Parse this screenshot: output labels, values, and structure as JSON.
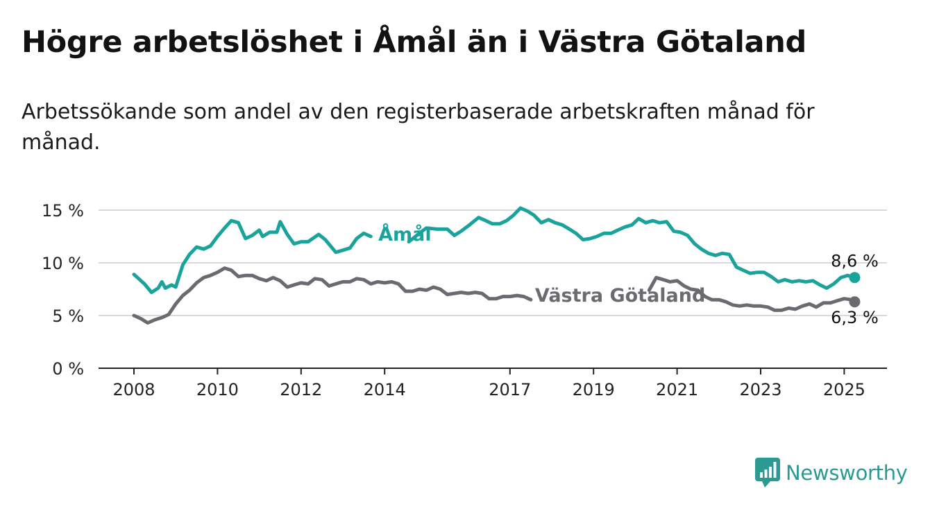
{
  "title": "Högre arbetslöshet i Åmål än i Västra Götaland",
  "subtitle": "Arbetssökande som andel av den registerbaserade arbetskraften månad för månad.",
  "brand": "Newsworthy",
  "colors": {
    "amal": "#1aa39a",
    "vg": "#6b6a70",
    "grid": "#d9d9d9",
    "axis": "#222222",
    "brand": "#2a9a93"
  },
  "chart_data": {
    "type": "line",
    "title": "Högre arbetslöshet i Åmål än i Västra Götaland",
    "ylim": [
      0,
      15
    ],
    "y_ticks": [
      0,
      5,
      10,
      15
    ],
    "y_tick_labels": [
      "0 %",
      "5 %",
      "10 %",
      "15 %"
    ],
    "x_ticks": [
      2008,
      2010,
      2012,
      2014,
      2017,
      2019,
      2021,
      2023,
      2025
    ],
    "x_tick_labels": [
      "2008",
      "2010",
      "2012",
      "2014",
      "2017",
      "2019",
      "2021",
      "2023",
      "2025"
    ],
    "grid": true,
    "series": [
      {
        "name": "Åmål",
        "color": "#1aa39a",
        "end_label": "8,6 %",
        "points": [
          [
            2008.0,
            8.9
          ],
          [
            2008.25,
            8.0
          ],
          [
            2008.42,
            7.2
          ],
          [
            2008.58,
            7.6
          ],
          [
            2008.67,
            8.2
          ],
          [
            2008.75,
            7.6
          ],
          [
            2008.9,
            7.9
          ],
          [
            2009.0,
            7.7
          ],
          [
            2009.17,
            9.8
          ],
          [
            2009.33,
            10.8
          ],
          [
            2009.5,
            11.5
          ],
          [
            2009.67,
            11.3
          ],
          [
            2009.83,
            11.6
          ],
          [
            2010.0,
            12.5
          ],
          [
            2010.17,
            13.3
          ],
          [
            2010.33,
            14.0
          ],
          [
            2010.5,
            13.8
          ],
          [
            2010.67,
            12.3
          ],
          [
            2010.83,
            12.6
          ],
          [
            2011.0,
            13.1
          ],
          [
            2011.08,
            12.5
          ],
          [
            2011.25,
            12.9
          ],
          [
            2011.42,
            12.9
          ],
          [
            2011.5,
            13.9
          ],
          [
            2011.67,
            12.7
          ],
          [
            2011.83,
            11.8
          ],
          [
            2012.0,
            12.0
          ],
          [
            2012.17,
            12.0
          ],
          [
            2012.42,
            12.7
          ],
          [
            2012.58,
            12.2
          ],
          [
            2012.83,
            11.0
          ],
          [
            2013.0,
            11.2
          ],
          [
            2013.17,
            11.4
          ],
          [
            2013.33,
            12.3
          ],
          [
            2013.5,
            12.8
          ],
          [
            2013.67,
            12.5
          ]
        ]
      },
      {
        "name": "Åmål",
        "color": "#1aa39a",
        "points": [
          [
            2014.58,
            12.0
          ],
          [
            2014.83,
            12.8
          ],
          [
            2015.0,
            13.3
          ],
          [
            2015.25,
            13.2
          ],
          [
            2015.5,
            13.2
          ],
          [
            2015.67,
            12.6
          ],
          [
            2015.83,
            13.0
          ],
          [
            2016.0,
            13.5
          ],
          [
            2016.25,
            14.3
          ],
          [
            2016.42,
            14.0
          ],
          [
            2016.58,
            13.7
          ],
          [
            2016.75,
            13.7
          ],
          [
            2016.92,
            14.0
          ],
          [
            2017.08,
            14.5
          ],
          [
            2017.25,
            15.2
          ],
          [
            2017.42,
            14.9
          ],
          [
            2017.58,
            14.5
          ],
          [
            2017.75,
            13.8
          ],
          [
            2017.92,
            14.1
          ],
          [
            2018.08,
            13.8
          ],
          [
            2018.25,
            13.6
          ],
          [
            2018.42,
            13.2
          ],
          [
            2018.58,
            12.8
          ],
          [
            2018.75,
            12.2
          ],
          [
            2018.92,
            12.3
          ],
          [
            2019.08,
            12.5
          ],
          [
            2019.25,
            12.8
          ],
          [
            2019.42,
            12.8
          ],
          [
            2019.58,
            13.1
          ],
          [
            2019.75,
            13.4
          ],
          [
            2019.92,
            13.6
          ],
          [
            2020.08,
            14.2
          ],
          [
            2020.25,
            13.8
          ],
          [
            2020.42,
            14.0
          ],
          [
            2020.58,
            13.8
          ],
          [
            2020.75,
            13.9
          ],
          [
            2020.92,
            13.0
          ],
          [
            2021.08,
            12.9
          ],
          [
            2021.25,
            12.6
          ],
          [
            2021.42,
            11.8
          ],
          [
            2021.58,
            11.3
          ],
          [
            2021.75,
            10.9
          ],
          [
            2021.92,
            10.7
          ],
          [
            2022.08,
            10.9
          ],
          [
            2022.25,
            10.8
          ],
          [
            2022.42,
            9.6
          ],
          [
            2022.58,
            9.3
          ],
          [
            2022.75,
            9.0
          ],
          [
            2022.92,
            9.1
          ],
          [
            2023.08,
            9.1
          ],
          [
            2023.25,
            8.7
          ],
          [
            2023.42,
            8.2
          ],
          [
            2023.58,
            8.4
          ],
          [
            2023.75,
            8.2
          ],
          [
            2023.92,
            8.3
          ],
          [
            2024.08,
            8.2
          ],
          [
            2024.25,
            8.3
          ],
          [
            2024.42,
            7.9
          ],
          [
            2024.58,
            7.6
          ],
          [
            2024.75,
            8.0
          ],
          [
            2024.92,
            8.6
          ],
          [
            2025.08,
            8.8
          ],
          [
            2025.25,
            8.6
          ]
        ]
      },
      {
        "name": "Västra Götaland",
        "color": "#6b6a70",
        "points": [
          [
            2008.0,
            5.0
          ],
          [
            2008.17,
            4.7
          ],
          [
            2008.33,
            4.3
          ],
          [
            2008.5,
            4.6
          ],
          [
            2008.67,
            4.8
          ],
          [
            2008.83,
            5.1
          ],
          [
            2009.0,
            6.1
          ],
          [
            2009.17,
            6.9
          ],
          [
            2009.33,
            7.4
          ],
          [
            2009.5,
            8.1
          ],
          [
            2009.67,
            8.6
          ],
          [
            2009.83,
            8.8
          ],
          [
            2010.0,
            9.1
          ],
          [
            2010.17,
            9.5
          ],
          [
            2010.33,
            9.3
          ],
          [
            2010.5,
            8.7
          ],
          [
            2010.67,
            8.8
          ],
          [
            2010.83,
            8.8
          ],
          [
            2011.0,
            8.5
          ],
          [
            2011.17,
            8.3
          ],
          [
            2011.33,
            8.6
          ],
          [
            2011.5,
            8.3
          ],
          [
            2011.67,
            7.7
          ],
          [
            2011.83,
            7.9
          ],
          [
            2012.0,
            8.1
          ],
          [
            2012.17,
            8.0
          ],
          [
            2012.33,
            8.5
          ],
          [
            2012.5,
            8.4
          ],
          [
            2012.67,
            7.8
          ],
          [
            2012.83,
            8.0
          ],
          [
            2013.0,
            8.2
          ],
          [
            2013.17,
            8.2
          ],
          [
            2013.33,
            8.5
          ],
          [
            2013.5,
            8.4
          ],
          [
            2013.67,
            8.0
          ],
          [
            2013.83,
            8.2
          ],
          [
            2014.0,
            8.1
          ],
          [
            2014.17,
            8.2
          ],
          [
            2014.33,
            8.0
          ],
          [
            2014.5,
            7.3
          ],
          [
            2014.67,
            7.3
          ],
          [
            2014.83,
            7.5
          ],
          [
            2015.0,
            7.4
          ],
          [
            2015.17,
            7.7
          ],
          [
            2015.33,
            7.5
          ],
          [
            2015.5,
            7.0
          ],
          [
            2015.67,
            7.1
          ],
          [
            2015.83,
            7.2
          ],
          [
            2016.0,
            7.1
          ],
          [
            2016.17,
            7.2
          ],
          [
            2016.33,
            7.1
          ],
          [
            2016.5,
            6.6
          ],
          [
            2016.67,
            6.6
          ],
          [
            2016.83,
            6.8
          ],
          [
            2017.0,
            6.8
          ],
          [
            2017.17,
            6.9
          ],
          [
            2017.33,
            6.8
          ],
          [
            2017.5,
            6.5
          ]
        ]
      },
      {
        "name": "Västra Götaland",
        "color": "#6b6a70",
        "points": [
          [
            2020.33,
            7.4
          ],
          [
            2020.5,
            8.6
          ],
          [
            2020.67,
            8.4
          ],
          [
            2020.83,
            8.2
          ],
          [
            2021.0,
            8.3
          ],
          [
            2021.17,
            7.8
          ],
          [
            2021.33,
            7.5
          ],
          [
            2021.5,
            7.4
          ],
          [
            2021.67,
            6.8
          ],
          [
            2021.83,
            6.5
          ],
          [
            2022.0,
            6.5
          ],
          [
            2022.17,
            6.3
          ],
          [
            2022.33,
            6.0
          ],
          [
            2022.5,
            5.9
          ],
          [
            2022.67,
            6.0
          ],
          [
            2022.83,
            5.9
          ],
          [
            2023.0,
            5.9
          ],
          [
            2023.17,
            5.8
          ],
          [
            2023.33,
            5.5
          ],
          [
            2023.5,
            5.5
          ],
          [
            2023.67,
            5.7
          ],
          [
            2023.83,
            5.6
          ],
          [
            2024.0,
            5.9
          ],
          [
            2024.17,
            6.1
          ],
          [
            2024.33,
            5.8
          ],
          [
            2024.5,
            6.2
          ],
          [
            2024.67,
            6.2
          ],
          [
            2024.83,
            6.4
          ],
          [
            2025.0,
            6.6
          ],
          [
            2025.17,
            6.5
          ],
          [
            2025.25,
            6.3
          ]
        ]
      }
    ],
    "labels": {
      "amal": "Åmål",
      "vg": "Västra Götaland",
      "amal_end": "8,6 %",
      "vg_end": "6,3 %"
    }
  }
}
